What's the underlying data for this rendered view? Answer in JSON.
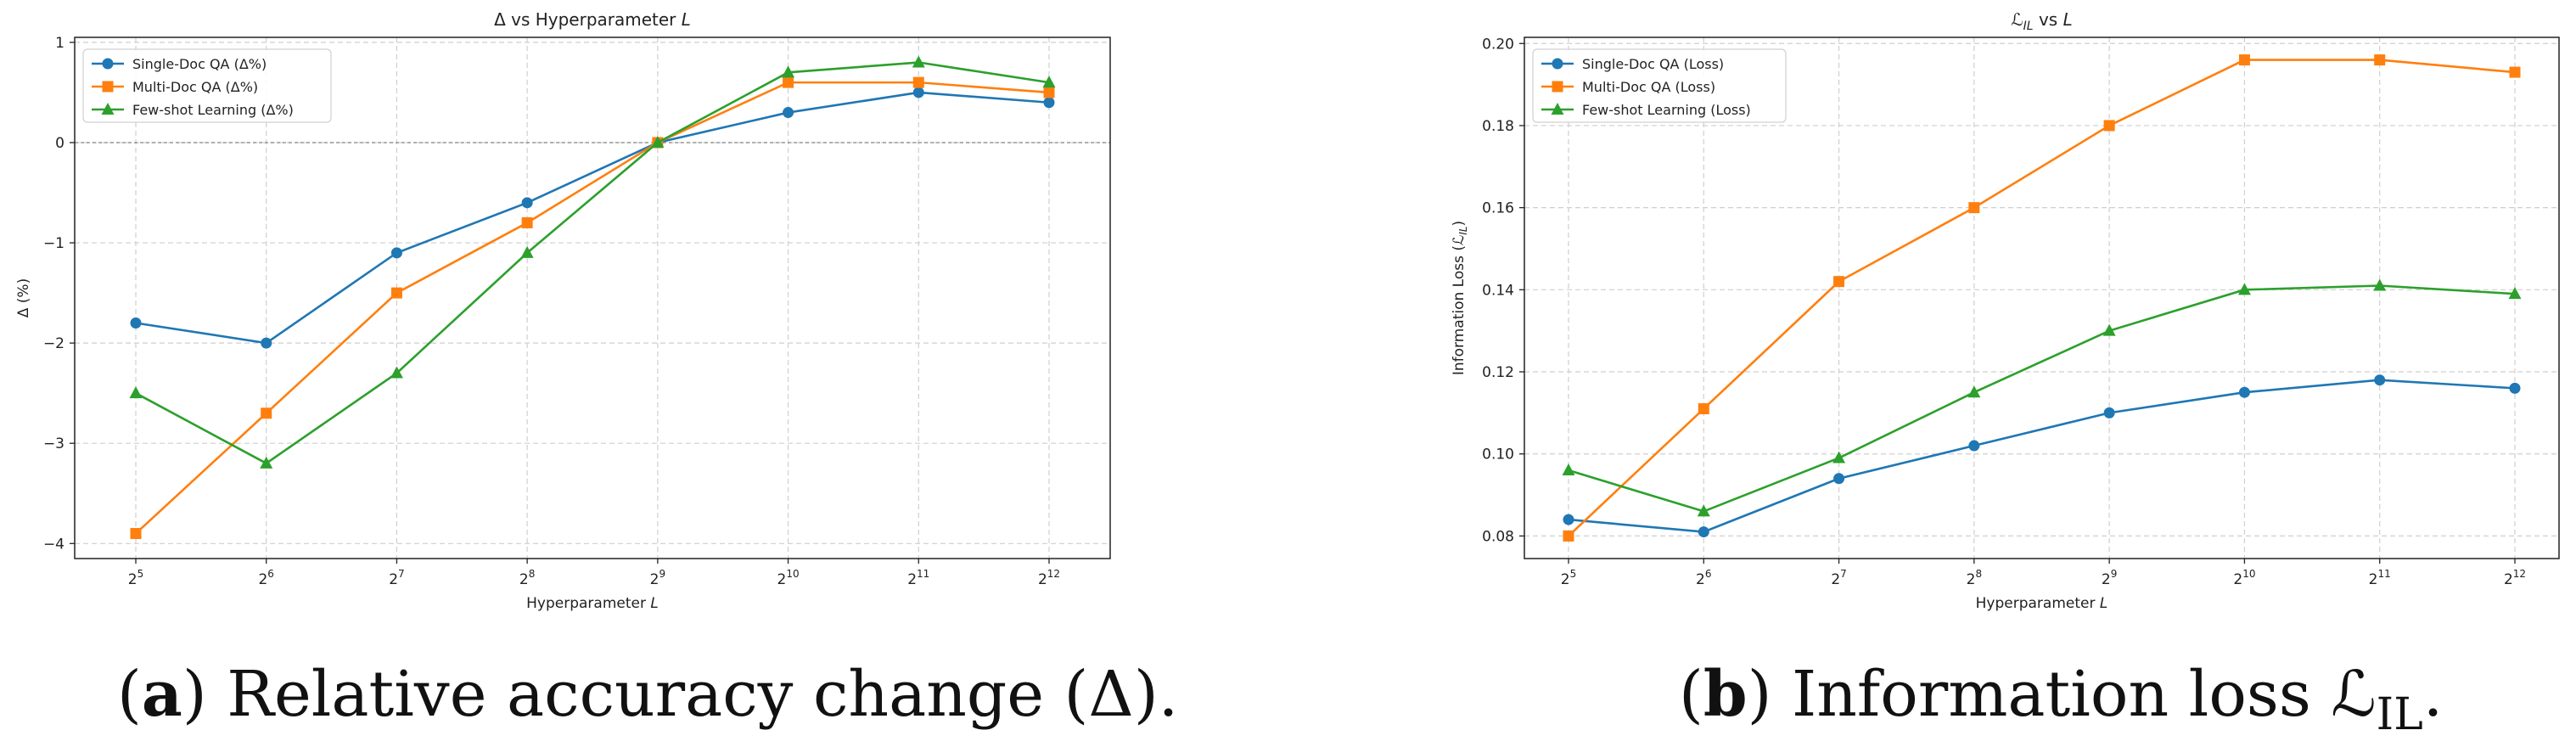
{
  "chart_data": [
    {
      "type": "line",
      "title": "Δ vs Hyperparameter L",
      "xlabel": "Hyperparameter L",
      "ylabel": "Δ (%)",
      "categories": [
        "2^5",
        "2^6",
        "2^7",
        "2^8",
        "2^9",
        "2^10",
        "2^11",
        "2^12"
      ],
      "x_tick_base": "2",
      "x_tick_exponents": [
        "5",
        "6",
        "7",
        "8",
        "9",
        "10",
        "11",
        "12"
      ],
      "ylim": [
        -4.15,
        1.05
      ],
      "yticks": [
        -4,
        -3,
        -2,
        -1,
        0,
        1
      ],
      "ytick_labels": [
        "−4",
        "−3",
        "−2",
        "−1",
        "0",
        "1"
      ],
      "grid": true,
      "reference_line_y": 0,
      "legend_position": "top-left",
      "series": [
        {
          "name": "Single-Doc QA (Δ%)",
          "color": "#1f77b4",
          "marker": "circle",
          "values": [
            -1.8,
            -2.0,
            -1.1,
            -0.6,
            0.0,
            0.3,
            0.5,
            0.4
          ]
        },
        {
          "name": "Multi-Doc QA (Δ%)",
          "color": "#ff7f0e",
          "marker": "square",
          "values": [
            -3.9,
            -2.7,
            -1.5,
            -0.8,
            0.0,
            0.6,
            0.6,
            0.5
          ]
        },
        {
          "name": "Few-shot Learning (Δ%)",
          "color": "#2ca02c",
          "marker": "triangle",
          "values": [
            -2.5,
            -3.2,
            -2.3,
            -1.1,
            0.0,
            0.7,
            0.8,
            0.6
          ]
        }
      ]
    },
    {
      "type": "line",
      "title": "ℒIL vs L",
      "xlabel": "Hyperparameter L",
      "ylabel": "Information Loss (ℒIL)",
      "categories": [
        "2^5",
        "2^6",
        "2^7",
        "2^8",
        "2^9",
        "2^10",
        "2^11",
        "2^12"
      ],
      "x_tick_base": "2",
      "x_tick_exponents": [
        "5",
        "6",
        "7",
        "8",
        "9",
        "10",
        "11",
        "12"
      ],
      "ylim": [
        0.0745,
        0.2015
      ],
      "yticks": [
        0.08,
        0.1,
        0.12,
        0.14,
        0.16,
        0.18,
        0.2
      ],
      "ytick_labels": [
        "0.08",
        "0.10",
        "0.12",
        "0.14",
        "0.16",
        "0.18",
        "0.20"
      ],
      "grid": true,
      "legend_position": "top-left",
      "series": [
        {
          "name": "Single-Doc QA (Loss)",
          "color": "#1f77b4",
          "marker": "circle",
          "values": [
            0.084,
            0.081,
            0.094,
            0.102,
            0.11,
            0.115,
            0.118,
            0.116
          ]
        },
        {
          "name": "Multi-Doc QA (Loss)",
          "color": "#ff7f0e",
          "marker": "square",
          "values": [
            0.08,
            0.111,
            0.142,
            0.16,
            0.18,
            0.196,
            0.196,
            0.193
          ]
        },
        {
          "name": "Few-shot Learning (Loss)",
          "color": "#2ca02c",
          "marker": "triangle",
          "values": [
            0.096,
            0.086,
            0.099,
            0.115,
            0.13,
            0.14,
            0.141,
            0.139
          ]
        }
      ]
    }
  ],
  "captions": {
    "a_label": "a",
    "a_text": "Relative accuracy change (Δ).",
    "b_label": "b",
    "b_text": "Information loss ℒ",
    "b_sub": "IL",
    "b_end": "."
  }
}
